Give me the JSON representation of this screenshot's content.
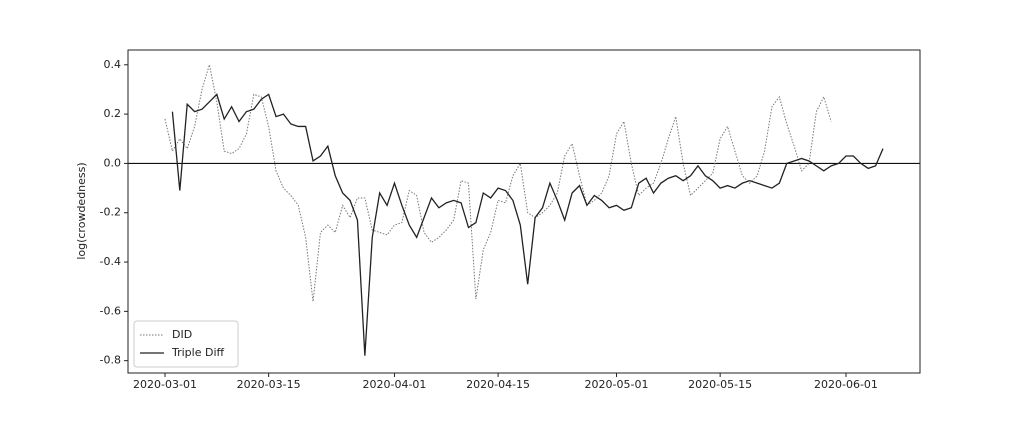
{
  "chart_data": {
    "type": "line",
    "ylabel": "log(crowdedness)",
    "x": [
      "2020-03-01",
      "2020-03-02",
      "2020-03-03",
      "2020-03-04",
      "2020-03-05",
      "2020-03-06",
      "2020-03-07",
      "2020-03-08",
      "2020-03-09",
      "2020-03-10",
      "2020-03-11",
      "2020-03-12",
      "2020-03-13",
      "2020-03-14",
      "2020-03-15",
      "2020-03-16",
      "2020-03-17",
      "2020-03-18",
      "2020-03-19",
      "2020-03-20",
      "2020-03-21",
      "2020-03-22",
      "2020-03-23",
      "2020-03-24",
      "2020-03-25",
      "2020-03-26",
      "2020-03-27",
      "2020-03-28",
      "2020-03-29",
      "2020-03-30",
      "2020-03-31",
      "2020-04-01",
      "2020-04-02",
      "2020-04-03",
      "2020-04-04",
      "2020-04-05",
      "2020-04-06",
      "2020-04-07",
      "2020-04-08",
      "2020-04-09",
      "2020-04-10",
      "2020-04-11",
      "2020-04-12",
      "2020-04-13",
      "2020-04-14",
      "2020-04-15",
      "2020-04-16",
      "2020-04-17",
      "2020-04-18",
      "2020-04-19",
      "2020-04-20",
      "2020-04-21",
      "2020-04-22",
      "2020-04-23",
      "2020-04-24",
      "2020-04-25",
      "2020-04-26",
      "2020-04-27",
      "2020-04-28",
      "2020-04-29",
      "2020-04-30",
      "2020-05-01",
      "2020-05-02",
      "2020-05-03",
      "2020-05-04",
      "2020-05-05",
      "2020-05-06",
      "2020-05-07",
      "2020-05-08",
      "2020-05-09",
      "2020-05-10",
      "2020-05-11",
      "2020-05-12",
      "2020-05-13",
      "2020-05-14",
      "2020-05-15",
      "2020-05-16",
      "2020-05-17",
      "2020-05-18",
      "2020-05-19",
      "2020-05-20",
      "2020-05-21",
      "2020-05-22",
      "2020-05-23",
      "2020-05-24",
      "2020-05-25",
      "2020-05-26",
      "2020-05-27",
      "2020-05-28",
      "2020-05-29",
      "2020-05-30",
      "2020-05-31",
      "2020-06-01",
      "2020-06-02",
      "2020-06-03",
      "2020-06-04",
      "2020-06-05",
      "2020-06-06"
    ],
    "series": [
      {
        "name": "DID",
        "color": "#777777",
        "linestyle": "dotted",
        "values": [
          0.18,
          0.05,
          0.1,
          0.06,
          0.15,
          0.3,
          0.4,
          0.25,
          0.05,
          0.04,
          0.06,
          0.12,
          0.28,
          0.27,
          0.15,
          -0.03,
          -0.1,
          -0.13,
          -0.17,
          -0.3,
          -0.56,
          -0.28,
          -0.25,
          -0.28,
          -0.17,
          -0.22,
          -0.14,
          -0.14,
          -0.27,
          -0.28,
          -0.29,
          -0.25,
          -0.24,
          -0.11,
          -0.13,
          -0.28,
          -0.32,
          -0.3,
          -0.27,
          -0.23,
          -0.07,
          -0.08,
          -0.55,
          -0.35,
          -0.28,
          -0.15,
          -0.16,
          -0.05,
          0.0,
          -0.2,
          -0.22,
          -0.2,
          -0.17,
          -0.12,
          0.03,
          0.08,
          -0.05,
          -0.17,
          -0.15,
          -0.12,
          -0.05,
          0.12,
          0.17,
          0.0,
          -0.13,
          -0.1,
          -0.08,
          0.0,
          0.1,
          0.19,
          0.0,
          -0.13,
          -0.1,
          -0.07,
          -0.04,
          0.1,
          0.15,
          0.05,
          -0.05,
          -0.08,
          -0.05,
          0.05,
          0.23,
          0.27,
          0.16,
          0.07,
          -0.03,
          0.0,
          0.21,
          0.27,
          0.17,
          null,
          null,
          null,
          null,
          null,
          null,
          null
        ]
      },
      {
        "name": "Triple Diff",
        "color": "#222222",
        "linestyle": "solid",
        "values": [
          null,
          0.21,
          -0.11,
          0.24,
          0.21,
          0.22,
          0.25,
          0.28,
          0.18,
          0.23,
          0.17,
          0.21,
          0.22,
          0.26,
          0.28,
          0.19,
          0.2,
          0.16,
          0.15,
          0.15,
          0.01,
          0.03,
          0.07,
          -0.05,
          -0.12,
          -0.15,
          -0.23,
          -0.78,
          -0.3,
          -0.12,
          -0.17,
          -0.08,
          -0.17,
          -0.25,
          -0.3,
          -0.22,
          -0.14,
          -0.18,
          -0.16,
          -0.15,
          -0.16,
          -0.26,
          -0.24,
          -0.12,
          -0.14,
          -0.1,
          -0.11,
          -0.15,
          -0.25,
          -0.49,
          -0.22,
          -0.18,
          -0.08,
          -0.15,
          -0.23,
          -0.12,
          -0.09,
          -0.17,
          -0.13,
          -0.15,
          -0.18,
          -0.17,
          -0.19,
          -0.18,
          -0.08,
          -0.06,
          -0.12,
          -0.08,
          -0.06,
          -0.05,
          -0.07,
          -0.05,
          -0.01,
          -0.05,
          -0.07,
          -0.1,
          -0.09,
          -0.1,
          -0.08,
          -0.07,
          -0.08,
          -0.09,
          -0.1,
          -0.08,
          0.0,
          0.01,
          0.02,
          0.01,
          -0.01,
          -0.03,
          -0.01,
          0.0,
          0.03,
          0.03,
          0.0,
          -0.02,
          -0.01,
          0.06
        ]
      }
    ],
    "xlim": [
      "2020-02-25",
      "2020-06-11"
    ],
    "xticks": [
      "2020-03-01",
      "2020-03-15",
      "2020-04-01",
      "2020-04-15",
      "2020-05-01",
      "2020-05-15",
      "2020-06-01"
    ],
    "ylim": [
      -0.85,
      0.46
    ],
    "yticks": [
      0.4,
      0.2,
      {
        "value": 0,
        "label": "0.0"
      },
      -0.2,
      -0.4,
      -0.6,
      -0.8
    ],
    "axhline": 0,
    "legend": "lower left"
  }
}
